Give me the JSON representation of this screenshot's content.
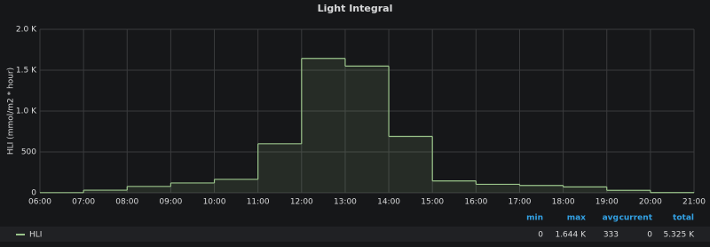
{
  "chart_data": {
    "type": "step-area",
    "title": "Light Integral",
    "y_label": "HLI (mmol/m2 * hour)",
    "x": [
      "06:00",
      "07:00",
      "08:00",
      "09:00",
      "10:00",
      "11:00",
      "12:00",
      "13:00",
      "14:00",
      "15:00",
      "16:00",
      "17:00",
      "18:00",
      "19:00",
      "20:00",
      "21:00"
    ],
    "series": [
      {
        "name": "HLI",
        "color": "#9ac48a",
        "values": [
          2,
          32,
          78,
          120,
          165,
          600,
          1644,
          1550,
          690,
          145,
          104,
          90,
          72,
          30,
          3,
          0
        ]
      }
    ],
    "ylim": [
      0,
      2000
    ],
    "yticks": [
      0,
      500,
      {
        "value": 1000,
        "label": "1.0 K"
      },
      {
        "value": 1500,
        "label": "1.5 K"
      },
      {
        "value": 2000,
        "label": "2.0 K"
      }
    ],
    "grid": true,
    "legend": {
      "columns": [
        "min",
        "max",
        "avg",
        "current",
        "total"
      ],
      "values": [
        0,
        1644,
        333,
        0,
        5325
      ],
      "value_labels": [
        "0",
        "1.644 K",
        "333",
        "0",
        "5.325 K"
      ]
    }
  }
}
